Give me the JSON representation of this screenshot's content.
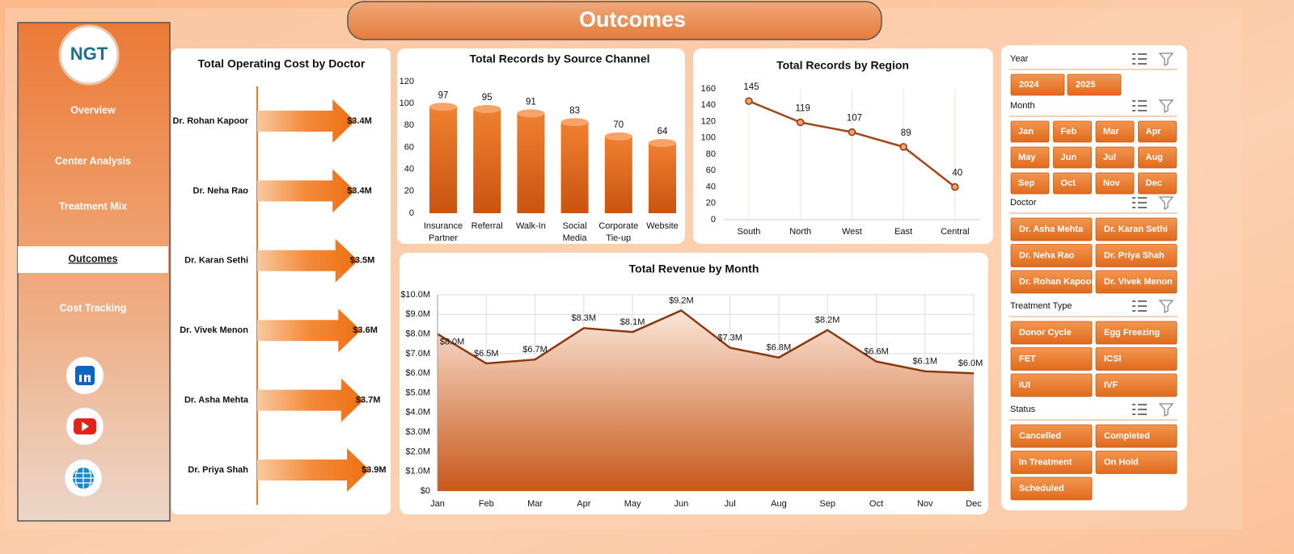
{
  "header": {
    "title": "Outcomes"
  },
  "logo": {
    "text": "NGT"
  },
  "nav": {
    "items": [
      {
        "label": "Overview",
        "active": false
      },
      {
        "label": "Center Analysis",
        "active": false
      },
      {
        "label": "Treatment Mix",
        "active": false
      },
      {
        "label": "Outcomes",
        "active": true
      },
      {
        "label": "Cost Tracking",
        "active": false
      }
    ]
  },
  "chart_data": [
    {
      "type": "arrow",
      "title": "Total Operating Cost by Doctor",
      "categories": [
        "Dr. Rohan Kapoor",
        "Dr. Neha Rao",
        "Dr. Karan Sethi",
        "Dr. Vivek Menon",
        "Dr. Asha Mehta",
        "Dr. Priya Shah"
      ],
      "values": [
        3.4,
        3.4,
        3.5,
        3.6,
        3.7,
        3.9
      ],
      "value_labels": [
        "$3.4M",
        "$3.4M",
        "$3.5M",
        "$3.6M",
        "$3.7M",
        "$3.9M"
      ],
      "color": "#f07a22"
    },
    {
      "type": "bar",
      "title": "Total Records by Source Channel",
      "categories": [
        "Insurance Partner",
        "Referral",
        "Walk-In",
        "Social Media",
        "Corporate Tie-up",
        "Website"
      ],
      "values": [
        97,
        95,
        91,
        83,
        70,
        64
      ],
      "ylim": [
        0,
        120
      ],
      "yticks": [
        0,
        20,
        40,
        60,
        80,
        100,
        120
      ],
      "color": "#e8701e"
    },
    {
      "type": "line",
      "title": "Total Records by Region",
      "categories": [
        "South",
        "North",
        "West",
        "East",
        "Central"
      ],
      "values": [
        145,
        119,
        107,
        89,
        40
      ],
      "ylim": [
        0,
        160
      ],
      "yticks": [
        0,
        20,
        40,
        60,
        80,
        100,
        120,
        140,
        160
      ],
      "color": "#a0461a"
    },
    {
      "type": "area",
      "title": "Total Revenue by Month",
      "categories": [
        "Jan",
        "Feb",
        "Mar",
        "Apr",
        "May",
        "Jun",
        "Jul",
        "Aug",
        "Sep",
        "Oct",
        "Nov",
        "Dec"
      ],
      "values": [
        8.0,
        6.5,
        6.7,
        8.3,
        8.1,
        9.2,
        7.3,
        6.8,
        8.2,
        6.6,
        6.1,
        6.0
      ],
      "value_labels": [
        "$8.0M",
        "$6.5M",
        "$6.7M",
        "$8.3M",
        "$8.1M",
        "$9.2M",
        "$7.3M",
        "$6.8M",
        "$8.2M",
        "$6.6M",
        "$6.1M",
        "$6.0M"
      ],
      "ylim": [
        0,
        10
      ],
      "yticks": [
        {
          "value": 0,
          "label": "$0"
        },
        {
          "value": 1,
          "label": "$1.0M"
        },
        {
          "value": 2,
          "label": "$2.0M"
        },
        {
          "value": 3,
          "label": "$3.0M"
        },
        {
          "value": 4,
          "label": "$4.0M"
        },
        {
          "value": 5,
          "label": "$5.0M"
        },
        {
          "value": 6,
          "label": "$6.0M"
        },
        {
          "value": 7,
          "label": "$7.0M"
        },
        {
          "value": 8,
          "label": "$8.0M"
        },
        {
          "value": 9,
          "label": "$9.0M"
        },
        {
          "value": 10,
          "label": "$10.0M"
        }
      ],
      "grid": true,
      "color": "#8b3a10"
    }
  ],
  "slicers": [
    {
      "title": "Year",
      "items": [
        "2024",
        "2025"
      ]
    },
    {
      "title": "Month",
      "items": [
        "Jan",
        "Feb",
        "Mar",
        "Apr",
        "May",
        "Jun",
        "Jul",
        "Aug",
        "Sep",
        "Oct",
        "Nov",
        "Dec"
      ]
    },
    {
      "title": "Doctor",
      "items": [
        "Dr. Asha Mehta",
        "Dr. Karan Sethi",
        "Dr. Neha Rao",
        "Dr. Priya Shah",
        "Dr. Rohan Kapoor",
        "Dr. Vivek Menon"
      ]
    },
    {
      "title": "Treatment Type",
      "items": [
        "Donor Cycle",
        "Egg Freezing",
        "FET",
        "ICSI",
        "IUI",
        "IVF"
      ]
    },
    {
      "title": "Status",
      "items": [
        "Cancelled",
        "Completed",
        "In Treatment",
        "On Hold",
        "Scheduled"
      ]
    }
  ]
}
